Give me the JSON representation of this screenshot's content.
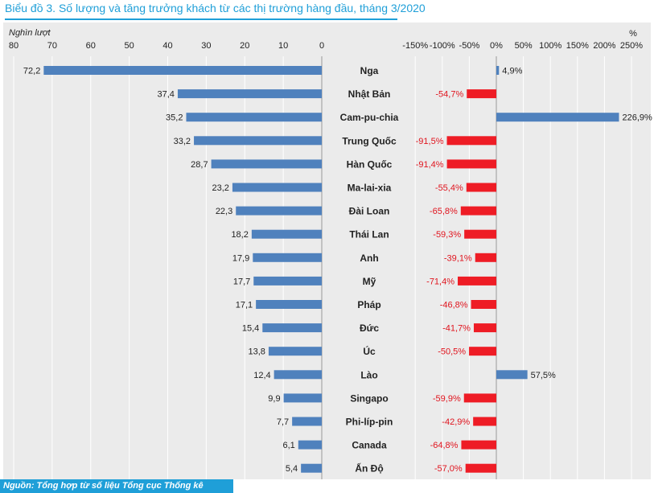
{
  "title": "Biểu đồ 3. Số lượng và tăng trưởng khách từ các thị trường hàng đầu, tháng 3/2020",
  "source": "Nguồn: Tổng hợp từ số liệu Tổng cục Thống kê",
  "colors": {
    "left_bar": "#4f81bd",
    "pos_bar": "#4f81bd",
    "neg_bar": "#ee1c25",
    "neg_label": "#e0141e",
    "panel": "#ebebeb",
    "title": "#1f9fd8"
  },
  "chart_data": [
    {
      "type": "bar",
      "orientation": "horizontal",
      "ylabel": "Nghìn lượt",
      "xlim": [
        80,
        0
      ],
      "xticks": [
        "80",
        "70",
        "60",
        "50",
        "40",
        "30",
        "20",
        "10",
        "0"
      ],
      "categories": [
        "Nga",
        "Nhật Bản",
        "Cam-pu-chia",
        "Trung Quốc",
        "Hàn Quốc",
        "Ma-lai-xia",
        "Đài Loan",
        "Thái Lan",
        "Anh",
        "Mỹ",
        "Pháp",
        "Đức",
        "Úc",
        "Lào",
        "Singapo",
        "Phi-líp-pin",
        "Canada",
        "Ấn Độ"
      ],
      "values": [
        72.2,
        37.4,
        35.2,
        33.2,
        28.7,
        23.2,
        22.3,
        18.2,
        17.9,
        17.7,
        17.1,
        15.4,
        13.8,
        12.4,
        9.9,
        7.7,
        6.1,
        5.4
      ],
      "value_labels": [
        "72,2",
        "37,4",
        "35,2",
        "33,2",
        "28,7",
        "23,2",
        "22,3",
        "18,2",
        "17,9",
        "17,7",
        "17,1",
        "15,4",
        "13,8",
        "12,4",
        "9,9",
        "7,7",
        "6,1",
        "5,4"
      ]
    },
    {
      "type": "bar",
      "orientation": "horizontal",
      "ylabel": "%",
      "xlim": [
        -150,
        250
      ],
      "xticks": [
        "-150%",
        "-100%",
        "-50%",
        "0%",
        "50%",
        "100%",
        "150%",
        "200%",
        "250%"
      ],
      "categories": [
        "Nga",
        "Nhật Bản",
        "Cam-pu-chia",
        "Trung Quốc",
        "Hàn Quốc",
        "Ma-lai-xia",
        "Đài Loan",
        "Thái Lan",
        "Anh",
        "Mỹ",
        "Pháp",
        "Đức",
        "Úc",
        "Lào",
        "Singapo",
        "Phi-líp-pin",
        "Canada",
        "Ấn Độ"
      ],
      "values": [
        4.9,
        -54.7,
        226.9,
        -91.5,
        -91.4,
        -55.4,
        -65.8,
        -59.3,
        -39.1,
        -71.4,
        -46.8,
        -41.7,
        -50.5,
        57.5,
        -59.9,
        -42.9,
        -64.8,
        -57.0
      ],
      "value_labels": [
        "4,9%",
        "-54,7%",
        "226,9%",
        "-91,5%",
        "-91,4%",
        "-55,4%",
        "-65,8%",
        "-59,3%",
        "-39,1%",
        "-71,4%",
        "-46,8%",
        "-41,7%",
        "-50,5%",
        "57,5%",
        "-59,9%",
        "-42,9%",
        "-64,8%",
        "-57,0%"
      ]
    }
  ]
}
